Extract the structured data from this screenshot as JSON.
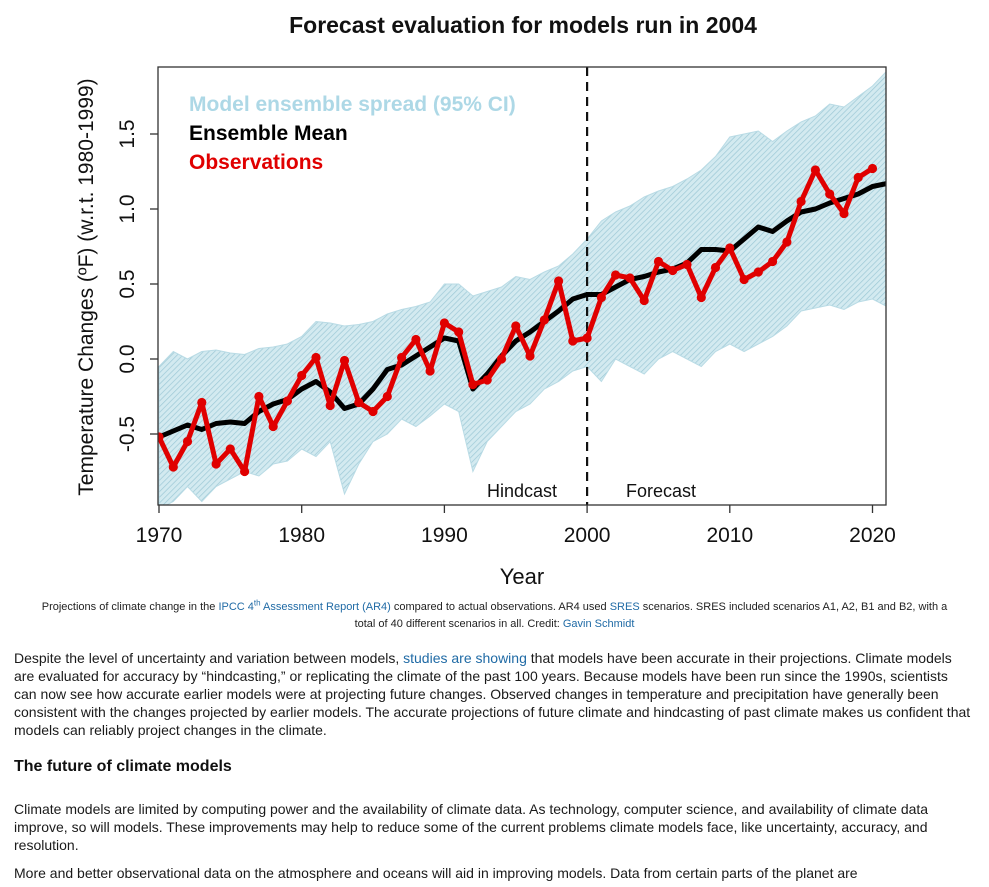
{
  "chart_data": {
    "type": "line",
    "title": "Forecast evaluation for models run in 2004",
    "xlabel": "Year",
    "ylabel": "Temperature Changes (ºF) (w.r.t. 1980-1999)",
    "xlim": [
      1970,
      2021
    ],
    "ylim": [
      -1.0,
      1.95
    ],
    "x_ticks": [
      1970,
      1980,
      1990,
      2000,
      2010,
      2020
    ],
    "x_tick_labels": [
      "1970",
      "1980",
      "1990",
      "2000",
      "2010",
      "2020"
    ],
    "y_ticks": [
      -0.5,
      0.0,
      0.5,
      1.0,
      1.5
    ],
    "y_tick_labels": [
      "-0.5",
      "0.0",
      "0.5",
      "1.0",
      "1.5"
    ],
    "grid": false,
    "legend": {
      "placement": "top-left",
      "entries": [
        {
          "label": "Model ensemble spread (95% CI)",
          "color": "#add8e6"
        },
        {
          "label": "Ensemble Mean",
          "color": "#000000"
        },
        {
          "label": "Observations",
          "color": "#e00000"
        }
      ]
    },
    "annotations": {
      "divider_year": 2000,
      "left_label": "Hindcast",
      "right_label": "Forecast"
    },
    "series": [
      {
        "name": "Model ensemble spread (95% CI)",
        "kind": "band",
        "color": "#add8e6",
        "x": [
          1970,
          1971,
          1972,
          1973,
          1974,
          1975,
          1976,
          1977,
          1978,
          1979,
          1980,
          1981,
          1982,
          1983,
          1984,
          1985,
          1986,
          1987,
          1988,
          1989,
          1990,
          1991,
          1992,
          1993,
          1994,
          1995,
          1996,
          1997,
          1998,
          1999,
          2000,
          2001,
          2002,
          2003,
          2004,
          2005,
          2006,
          2007,
          2008,
          2009,
          2010,
          2011,
          2012,
          2013,
          2014,
          2015,
          2016,
          2017,
          2018,
          2019,
          2020,
          2021
        ],
        "upper": [
          -0.05,
          0.05,
          0.0,
          0.05,
          0.06,
          0.04,
          0.03,
          0.07,
          0.08,
          0.1,
          0.15,
          0.25,
          0.24,
          0.22,
          0.23,
          0.25,
          0.3,
          0.33,
          0.35,
          0.38,
          0.5,
          0.5,
          0.42,
          0.45,
          0.48,
          0.55,
          0.53,
          0.58,
          0.62,
          0.7,
          0.8,
          0.92,
          0.98,
          1.02,
          1.08,
          1.12,
          1.15,
          1.2,
          1.26,
          1.35,
          1.48,
          1.5,
          1.52,
          1.45,
          1.52,
          1.58,
          1.62,
          1.7,
          1.68,
          1.75,
          1.82,
          1.92
        ],
        "lower": [
          -1.0,
          -0.95,
          -0.85,
          -0.95,
          -0.85,
          -0.8,
          -0.75,
          -0.78,
          -0.7,
          -0.68,
          -0.6,
          -0.65,
          -0.55,
          -0.9,
          -0.7,
          -0.55,
          -0.5,
          -0.4,
          -0.45,
          -0.38,
          -0.3,
          -0.35,
          -0.75,
          -0.55,
          -0.45,
          -0.35,
          -0.3,
          -0.2,
          -0.15,
          -0.08,
          -0.05,
          -0.15,
          0.0,
          -0.05,
          -0.1,
          0.0,
          0.05,
          0.0,
          -0.05,
          0.05,
          0.1,
          0.05,
          0.1,
          0.15,
          0.22,
          0.32,
          0.34,
          0.36,
          0.33,
          0.38,
          0.4,
          0.35
        ]
      },
      {
        "name": "Ensemble Mean",
        "kind": "line",
        "color": "#000000",
        "x": [
          1970,
          1971,
          1972,
          1973,
          1974,
          1975,
          1976,
          1977,
          1978,
          1979,
          1980,
          1981,
          1982,
          1983,
          1984,
          1985,
          1986,
          1987,
          1988,
          1989,
          1990,
          1991,
          1992,
          1993,
          1994,
          1995,
          1996,
          1997,
          1998,
          1999,
          2000,
          2001,
          2002,
          2003,
          2004,
          2005,
          2006,
          2007,
          2008,
          2009,
          2010,
          2011,
          2012,
          2013,
          2014,
          2015,
          2016,
          2017,
          2018,
          2019,
          2020,
          2021
        ],
        "values": [
          -0.52,
          -0.48,
          -0.44,
          -0.47,
          -0.43,
          -0.42,
          -0.43,
          -0.35,
          -0.3,
          -0.27,
          -0.2,
          -0.15,
          -0.22,
          -0.33,
          -0.3,
          -0.2,
          -0.07,
          -0.04,
          0.02,
          0.08,
          0.14,
          0.12,
          -0.2,
          -0.1,
          0.02,
          0.12,
          0.18,
          0.25,
          0.32,
          0.4,
          0.43,
          0.43,
          0.48,
          0.53,
          0.55,
          0.58,
          0.6,
          0.64,
          0.73,
          0.73,
          0.72,
          0.8,
          0.88,
          0.85,
          0.92,
          0.98,
          1.0,
          1.04,
          1.07,
          1.1,
          1.15,
          1.17
        ]
      },
      {
        "name": "Observations",
        "kind": "line-markers",
        "color": "#e00000",
        "x": [
          1970,
          1971,
          1972,
          1973,
          1974,
          1975,
          1976,
          1977,
          1978,
          1979,
          1980,
          1981,
          1982,
          1983,
          1984,
          1985,
          1986,
          1987,
          1988,
          1989,
          1990,
          1991,
          1992,
          1993,
          1994,
          1995,
          1996,
          1997,
          1998,
          1999,
          2000,
          2001,
          2002,
          2003,
          2004,
          2005,
          2006,
          2007,
          2008,
          2009,
          2010,
          2011,
          2012,
          2013,
          2014,
          2015,
          2016,
          2017,
          2018,
          2019,
          2020
        ],
        "values": [
          -0.52,
          -0.72,
          -0.55,
          -0.29,
          -0.7,
          -0.6,
          -0.75,
          -0.25,
          -0.45,
          -0.28,
          -0.11,
          0.01,
          -0.31,
          -0.01,
          -0.29,
          -0.35,
          -0.25,
          0.01,
          0.13,
          -0.08,
          0.24,
          0.18,
          -0.17,
          -0.14,
          0.0,
          0.22,
          0.02,
          0.26,
          0.52,
          0.12,
          0.14,
          0.41,
          0.56,
          0.54,
          0.39,
          0.65,
          0.59,
          0.63,
          0.41,
          0.61,
          0.74,
          0.53,
          0.58,
          0.65,
          0.78,
          1.05,
          1.26,
          1.1,
          0.97,
          1.21,
          1.27
        ]
      }
    ]
  },
  "caption": {
    "pre": "Projections of climate change in the ",
    "link1": "IPCC 4",
    "link1_sup": "th",
    "link1_rest": " Assessment Report (AR4)",
    "mid1": " compared to actual observations. AR4 used ",
    "link2": "SRES",
    "mid2": " scenarios. SRES included scenarios A1, A2, B1 and B2, with a total of 40 different scenarios in all. Credit: ",
    "link3": "Gavin Schmidt"
  },
  "article": {
    "para1_pre": "Despite the level of uncertainty and variation between models, ",
    "para1_link": "studies are showing",
    "para1_post": " that models have been accurate in their projections. Climate models are evaluated for accuracy by “hindcasting,” or replicating the climate of the past 100 years. Because models have been run since the 1990s, scientists can now see how accurate earlier models were at projecting future changes. Observed changes in temperature and precipitation have generally been consistent with the changes projected by earlier models. The accurate projections of future climate and hindcasting of past climate makes us confident that models can reliably project changes in the climate.",
    "heading": "The future of climate models",
    "para2": "Climate models are limited by computing power and the availability of climate data. As technology, computer science, and availability of climate data improve, so will models. These improvements may help to reduce some of the current problems climate models face, like uncertainty, accuracy, and resolution.",
    "para3": "More and better observational data on the atmosphere and oceans will aid in improving models. Data from certain parts of the planet are"
  }
}
